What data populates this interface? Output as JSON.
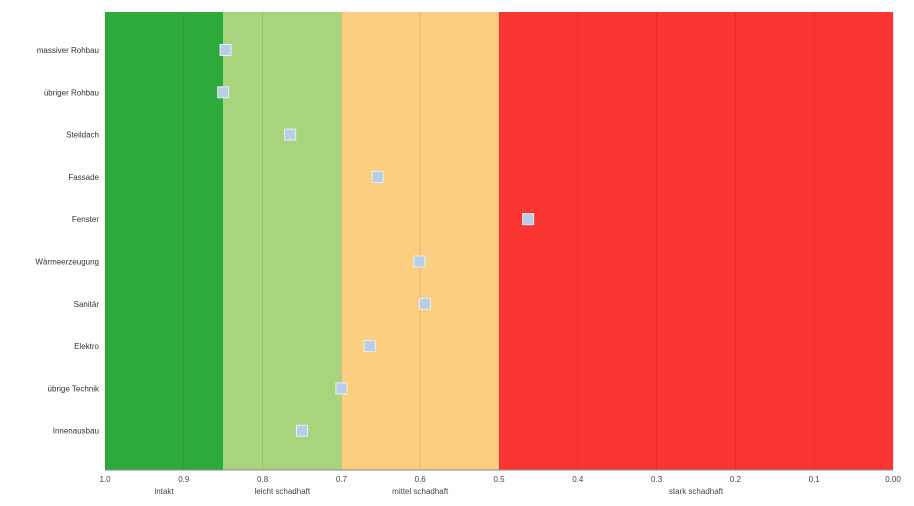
{
  "chart_data": {
    "type": "scatter",
    "title": "",
    "xlabel": "",
    "ylabel": "",
    "xlim": [
      1.0,
      0.0
    ],
    "x_reversed": true,
    "x_ticks": [
      {
        "value": 1.0,
        "label": "1.0"
      },
      {
        "value": 0.9,
        "label": "0.9"
      },
      {
        "value": 0.8,
        "label": "0.8"
      },
      {
        "value": 0.7,
        "label": "0.7"
      },
      {
        "value": 0.6,
        "label": "0.6"
      },
      {
        "value": 0.5,
        "label": "0.5"
      },
      {
        "value": 0.4,
        "label": "0.4"
      },
      {
        "value": 0.3,
        "label": "0.3"
      },
      {
        "value": 0.2,
        "label": "0.2"
      },
      {
        "value": 0.1,
        "label": "0.1"
      },
      {
        "value": 0.0,
        "label": "0.00"
      }
    ],
    "grid": true,
    "bands": [
      {
        "from": 1.0,
        "to": 0.85,
        "label": "intakt",
        "color": "#2eaa3c"
      },
      {
        "from": 0.85,
        "to": 0.7,
        "label": "leicht schadhaft",
        "color": "#a8d47e"
      },
      {
        "from": 0.7,
        "to": 0.5,
        "label": "mittel schadhaft",
        "color": "#fccf80"
      },
      {
        "from": 0.5,
        "to": 0.0,
        "label": "stark schadhaft",
        "color": "#fb3434"
      }
    ],
    "categories": [
      "massiver Rohbau",
      "übriger Rohbau",
      "Steildach",
      "Fassade",
      "Fenster",
      "Wärmeerzeugung",
      "Sanitär",
      "Elektro",
      "übrige Technik",
      "Innenausbau"
    ],
    "values": [
      0.847,
      0.85,
      0.765,
      0.654,
      0.463,
      0.601,
      0.594,
      0.664,
      0.7,
      0.75
    ],
    "marker_color": "#b8cde6"
  }
}
